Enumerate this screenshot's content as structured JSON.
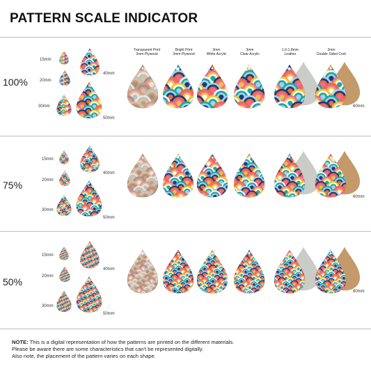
{
  "title": "PATTERN SCALE INDICATOR",
  "materials": [
    {
      "line1": "Transparent Print",
      "line2": "3mm Plywood"
    },
    {
      "line1": "Bright Print",
      "line2": "3mm Plywood"
    },
    {
      "line1": "3mm",
      "line2": "White Acrylic"
    },
    {
      "line1": "3mm",
      "line2": "Clear Acrylic"
    },
    {
      "line1": "1.6-1.8mm",
      "line2": "Leather"
    },
    {
      "line1": "2mm",
      "line2": "Double Sided Cork"
    }
  ],
  "sections": [
    {
      "scale": "100%",
      "size_15": "15mm",
      "size_20": "20mm",
      "size_30": "30mm",
      "size_40": "40mm",
      "size_50": "50mm",
      "size_60": "60mm"
    },
    {
      "scale": "75%",
      "size_15": "15mm",
      "size_20": "20mm",
      "size_30": "30mm",
      "size_40": "40mm",
      "size_50": "50mm",
      "size_60": "60mm"
    },
    {
      "scale": "50%",
      "size_15": "15mm",
      "size_20": "20mm",
      "size_30": "30mm",
      "size_40": "40mm",
      "size_50": "50mm",
      "size_60": "60mm"
    }
  ],
  "note": {
    "label": "NOTE:",
    "line1": "This is a digital representation of how the patterns are printed on the different materials.",
    "line2": "Please be aware there are some characteristics that can't be represented digitally.",
    "line3": "Also note, the placement of the pattern varies on each shape."
  },
  "colors": {
    "pink": "#f06aa0",
    "navy": "#1f3a7a",
    "teal": "#1fa7a0",
    "yellow": "#f2c230",
    "orange": "#ef6a3a",
    "lightblue": "#9fd3ea",
    "white": "#fbf7f2",
    "muted_rose": "#c98a86",
    "muted_tan": "#c7a47a",
    "leather": "#c9ccc7",
    "cork": "#c49a6a"
  }
}
